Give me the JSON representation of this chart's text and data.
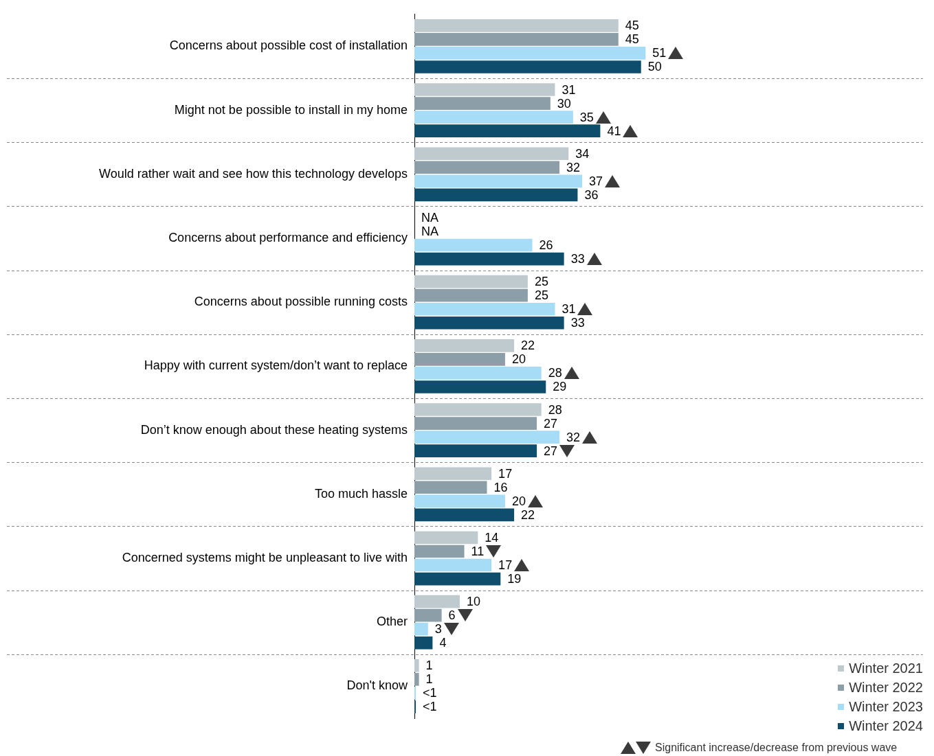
{
  "chart_data": {
    "type": "bar",
    "orientation": "horizontal",
    "grid": "y",
    "legend": "bottom right",
    "categories": [
      "Concerns about possible cost of installation",
      "Might not be possible to install in my home",
      "Would rather wait and see how this technology develops",
      "Concerns about performance and efficiency",
      "Concerns about possible running costs",
      "Happy with current system/don’t want to replace",
      "Don’t know enough about these heating systems",
      "Too much hassle",
      "Concerned systems might be unpleasant to live with",
      "Other",
      "Don't know"
    ],
    "series": [
      {
        "name": "Winter 2021",
        "color": "#bfcacf",
        "values": [
          45,
          31,
          34,
          null,
          25,
          22,
          28,
          17,
          14,
          10,
          1
        ],
        "value_labels": [
          "45",
          "31",
          "34",
          "NA",
          "25",
          "22",
          "28",
          "17",
          "14",
          "10",
          "1"
        ]
      },
      {
        "name": "Winter 2022",
        "color": "#8c9ea7",
        "values": [
          45,
          30,
          32,
          null,
          25,
          20,
          27,
          16,
          11,
          6,
          1
        ],
        "value_labels": [
          "45",
          "30",
          "32",
          "NA",
          "25",
          "20",
          "27",
          "16",
          "11",
          "6",
          "1"
        ]
      },
      {
        "name": "Winter 2023",
        "color": "#a6dcf5",
        "values": [
          51,
          35,
          37,
          26,
          31,
          28,
          32,
          20,
          17,
          3,
          0.3
        ],
        "value_labels": [
          "51",
          "35",
          "37",
          "26",
          "31",
          "28",
          "32",
          "20",
          "17",
          "3",
          "<1"
        ]
      },
      {
        "name": "Winter 2024",
        "color": "#0e4d6b",
        "values": [
          50,
          41,
          36,
          33,
          33,
          29,
          27,
          22,
          19,
          4,
          0.3
        ],
        "value_labels": [
          "50",
          "41",
          "36",
          "33",
          "33",
          "29",
          "27",
          "22",
          "19",
          "4",
          "<1"
        ]
      }
    ],
    "annotations": [
      "Significant increase/decrease from previous wave"
    ]
  }
}
